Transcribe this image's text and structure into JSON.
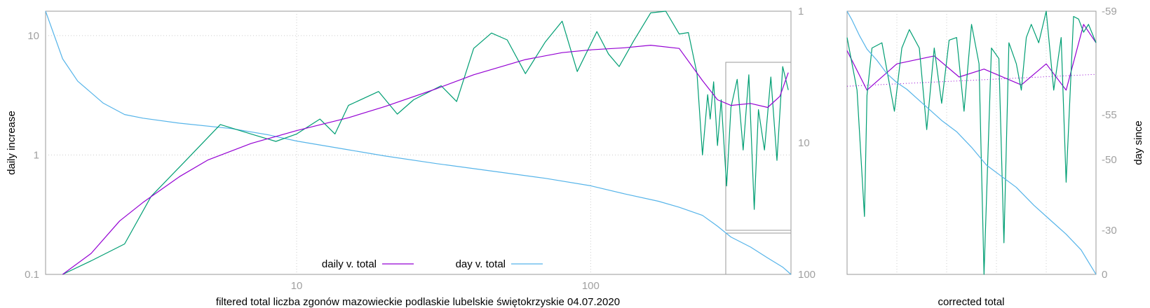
{
  "chart_data": [
    {
      "type": "line",
      "xlabel": "filtered total liczba zgonów mazowieckie podlaskie lubelskie świętokrzyskie 04.07.2020",
      "ylabel": "daily increase",
      "x_scale": "log",
      "y_scale": "log",
      "y2_scale": "log-inverted",
      "xlim": [
        1.4,
        480
      ],
      "ylim": [
        0.1,
        16
      ],
      "y2lim": [
        1,
        100
      ],
      "x_ticks": [
        "10",
        "100"
      ],
      "y_ticks": [
        "0.1",
        "1",
        "10"
      ],
      "y2_ticks": [
        "1",
        "10",
        "100"
      ],
      "grid": true,
      "legend_position": "bottom-center",
      "legend": [
        "daily v. total",
        "day v. total"
      ],
      "colors": {
        "daily_fit": "#9400d3",
        "daily_raw": "#009e73",
        "day": "#56b4e9",
        "grid": "#cccccc",
        "tick_text": "#a0a0a0"
      },
      "series": [
        {
          "name": "daily v. total",
          "axis": "y",
          "x": [
            1.6,
            2.0,
            2.5,
            3.0,
            4.0,
            5.0,
            7.0,
            10.0,
            15.0,
            20.0,
            30.0,
            40.0,
            60.0,
            80.0,
            100.0,
            130.0,
            160.0,
            200.0,
            240.0,
            270.0,
            300.0,
            350.0,
            400.0,
            440.0,
            470.0
          ],
          "y": [
            0.1,
            0.15,
            0.28,
            0.4,
            0.66,
            0.91,
            1.25,
            1.6,
            2.05,
            2.55,
            3.6,
            4.7,
            6.3,
            7.2,
            7.6,
            7.9,
            8.3,
            7.8,
            4.2,
            2.9,
            2.6,
            2.7,
            2.5,
            3.1,
            4.9
          ]
        },
        {
          "name": "",
          "axis": "y",
          "x": [
            1.6,
            2.0,
            2.6,
            3.2,
            4.2,
            5.5,
            7.0,
            8.5,
            10.0,
            12.0,
            13.5,
            15.0,
            19.0,
            22.0,
            25.0,
            31.0,
            35.0,
            40.0,
            46.0,
            52.0,
            60.0,
            70.0,
            80.0,
            90.0,
            105.0,
            115.0,
            125.0,
            140.0,
            160.0,
            180.0,
            200.0,
            215.0,
            230.0,
            240.0,
            250.0,
            255.0,
            262.0,
            270.0,
            278.0,
            290.0,
            300.0,
            315.0,
            330.0,
            345.0,
            360.0,
            372.0,
            390.0,
            410.0,
            430.0,
            450.0,
            470.0
          ],
          "y": [
            0.1,
            0.13,
            0.18,
            0.45,
            0.9,
            1.8,
            1.5,
            1.3,
            1.5,
            2.0,
            1.5,
            2.6,
            3.4,
            2.2,
            2.9,
            3.8,
            2.8,
            7.8,
            10.5,
            9.2,
            4.8,
            8.8,
            13.2,
            5.0,
            10.8,
            7.0,
            5.5,
            9.0,
            15.5,
            16.0,
            10.3,
            10.6,
            4.8,
            1.0,
            3.2,
            2.0,
            4.1,
            1.2,
            2.9,
            0.55,
            2.5,
            4.3,
            1.1,
            4.7,
            0.35,
            2.4,
            1.1,
            4.5,
            0.9,
            5.5,
            3.5
          ]
        },
        {
          "name": "day v. total",
          "axis": "y2",
          "x": [
            1.4,
            1.6,
            1.8,
            2.2,
            2.6,
            3.0,
            4.0,
            6.0,
            8.0,
            10.0,
            15.0,
            20.0,
            30.0,
            50.0,
            70.0,
            100.0,
            130.0,
            170.0,
            200.0,
            240.0,
            270.0,
            300.0,
            350.0,
            400.0,
            450.0,
            480.0
          ],
          "y": [
            1.0,
            2.3,
            3.4,
            5.0,
            6.1,
            6.5,
            7.1,
            7.8,
            8.7,
            9.7,
            11.3,
            12.6,
            14.4,
            16.8,
            18.6,
            21.2,
            24.4,
            27.8,
            30.9,
            35.6,
            43.0,
            52.0,
            62.0,
            75.0,
            88.0,
            100.0
          ]
        }
      ]
    },
    {
      "type": "line",
      "xlabel": "corrected total",
      "ylabel": "day since",
      "y2_ticks": [
        "-59",
        "-55",
        "-50",
        "-30",
        "0"
      ],
      "y2lim": [
        0,
        -59
      ],
      "grid": true,
      "series": [
        {
          "name": "",
          "axis": "y",
          "t": [
            0.0,
            0.08,
            0.2,
            0.35,
            0.45,
            0.55,
            0.7,
            0.8,
            0.88,
            0.95,
            1.0
          ],
          "v": [
            0.85,
            0.7,
            0.8,
            0.83,
            0.75,
            0.78,
            0.72,
            0.8,
            0.7,
            0.95,
            0.88
          ]
        },
        {
          "name": "",
          "axis": "y",
          "t": [
            0.0,
            0.04,
            0.07,
            0.08,
            0.1,
            0.14,
            0.19,
            0.22,
            0.25,
            0.29,
            0.32,
            0.35,
            0.38,
            0.41,
            0.44,
            0.47,
            0.5,
            0.53,
            0.55,
            0.58,
            0.61,
            0.63,
            0.65,
            0.68,
            0.7,
            0.72,
            0.74,
            0.77,
            0.8,
            0.83,
            0.86,
            0.88,
            0.91,
            0.93,
            0.95,
            0.97,
            1.0
          ],
          "v": [
            0.9,
            0.7,
            0.22,
            0.68,
            0.86,
            0.88,
            0.62,
            0.86,
            0.93,
            0.86,
            0.55,
            0.86,
            0.65,
            0.89,
            0.9,
            0.62,
            0.95,
            0.8,
            0.0,
            0.86,
            0.82,
            0.12,
            0.88,
            0.8,
            0.7,
            0.9,
            0.95,
            0.88,
            1.0,
            0.7,
            0.9,
            0.35,
            0.98,
            0.97,
            0.92,
            0.95,
            0.88
          ]
        },
        {
          "name": "",
          "axis": "y",
          "t": [
            0.0,
            1.0
          ],
          "v": [
            0.715,
            0.76
          ]
        },
        {
          "name": "",
          "axis": "y2",
          "t": [
            0.0,
            0.02,
            0.05,
            0.08,
            0.12,
            0.16,
            0.2,
            0.24,
            0.28,
            0.33,
            0.38,
            0.44,
            0.5,
            0.56,
            0.62,
            0.68,
            0.75,
            0.82,
            0.88,
            0.94,
            1.0
          ],
          "v": [
            -59.0,
            -57.0,
            -53.5,
            -50.5,
            -48.0,
            -45.0,
            -43.0,
            -41.5,
            -39.5,
            -37.0,
            -34.5,
            -32.0,
            -28.5,
            -24.5,
            -22.0,
            -19.5,
            -15.5,
            -12.0,
            -9.0,
            -5.5,
            0.0
          ]
        }
      ]
    }
  ]
}
